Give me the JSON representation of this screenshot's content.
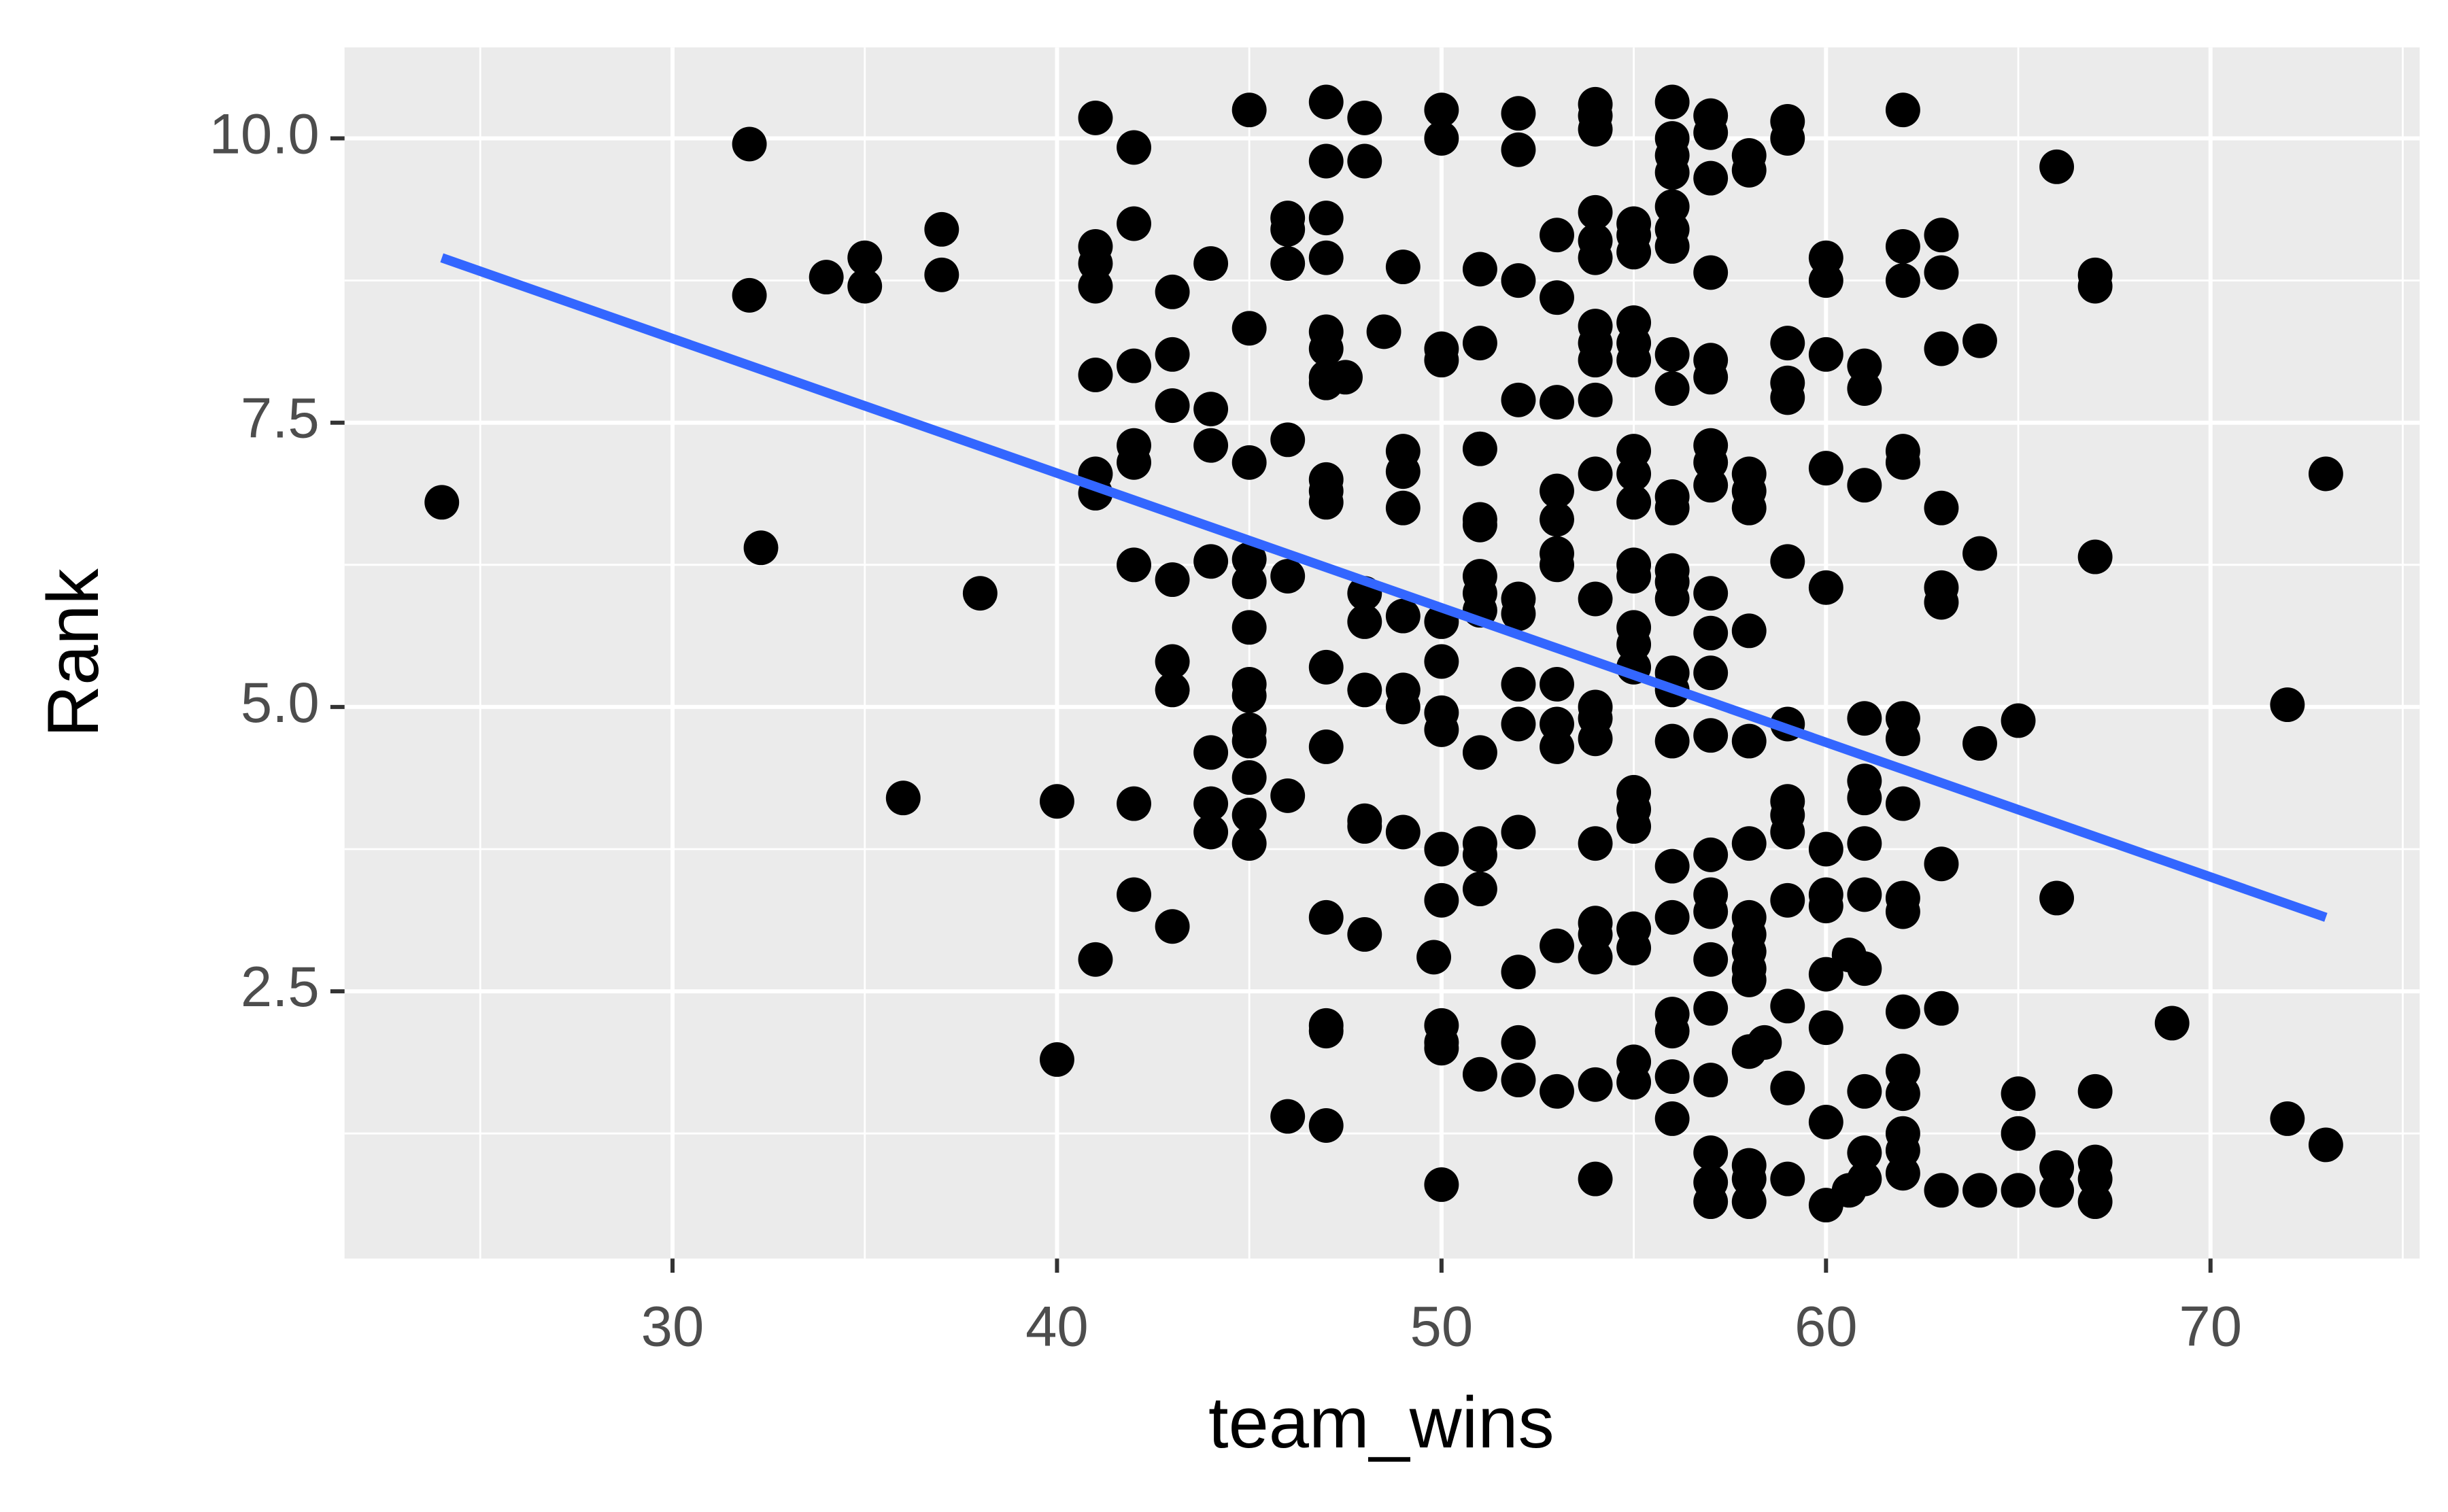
{
  "chart_data": {
    "type": "scatter",
    "xlabel": "team_wins",
    "ylabel": "Rank",
    "xlim": [
      21.47,
      75.44
    ],
    "ylim": [
      0.15,
      10.8
    ],
    "xticks": [
      30,
      40,
      50,
      60,
      70
    ],
    "yticks": [
      {
        "value": 2.5,
        "label": "2.5"
      },
      {
        "value": 5,
        "label": "5.0"
      },
      {
        "value": 7.5,
        "label": "7.5"
      },
      {
        "value": 10,
        "label": "10.0"
      }
    ],
    "x_minor_ticks": [
      25,
      35,
      45,
      55,
      65,
      75
    ],
    "y_minor_ticks": [
      1.25,
      3.75,
      6.25,
      8.75
    ],
    "grid": true,
    "background": "#ebebeb",
    "color": "#000000",
    "x": [
      24,
      32,
      32,
      32.3,
      34,
      35,
      35,
      36,
      37,
      37,
      38,
      40,
      40,
      41,
      41,
      41,
      41,
      41,
      41,
      41,
      41,
      42,
      42,
      42,
      42,
      42,
      42,
      42,
      42,
      43,
      43,
      43,
      43,
      43,
      43,
      43,
      44,
      44,
      44,
      44,
      44,
      44,
      44,
      45,
      45,
      45,
      45,
      45,
      45,
      45,
      45,
      45,
      45,
      45,
      45,
      45,
      46,
      46,
      46,
      46,
      46,
      46,
      46,
      47,
      47,
      47,
      47,
      47,
      47,
      47,
      47,
      47,
      47,
      47,
      47,
      47,
      47,
      47,
      47,
      47,
      47.5,
      48,
      48,
      48,
      48,
      48,
      48,
      48,
      48,
      48.5,
      49,
      49,
      49,
      49,
      49,
      49,
      49,
      49,
      49.8,
      50,
      50,
      50,
      50,
      50,
      50,
      50,
      50,
      50,
      50,
      50,
      50,
      50,
      50,
      51,
      51,
      51,
      51,
      51,
      51,
      51,
      51,
      51,
      51,
      51,
      51,
      51,
      52,
      52,
      52,
      52,
      52,
      52,
      52,
      52,
      52,
      52,
      52,
      52,
      53,
      53,
      53,
      53,
      53,
      53,
      53,
      53,
      53,
      53,
      53,
      53,
      54,
      54,
      54,
      54,
      54,
      54,
      54,
      54,
      54,
      54,
      54,
      54,
      54,
      54,
      54,
      54,
      54,
      54,
      54,
      54,
      54,
      55,
      55,
      55,
      55,
      55,
      55,
      55,
      55,
      55,
      55,
      55,
      55,
      55,
      55,
      55,
      55,
      55,
      55,
      55,
      55,
      55,
      56,
      56,
      56,
      56,
      56,
      56,
      56,
      56,
      56,
      56,
      56,
      56,
      56,
      56,
      56,
      56,
      56,
      56,
      56,
      56,
      56,
      56,
      56,
      57,
      57,
      57,
      57,
      57,
      57,
      57,
      57,
      57,
      57,
      57,
      57,
      57,
      57,
      57,
      57,
      57,
      57,
      57,
      57,
      57,
      57,
      58,
      58,
      58,
      58,
      58,
      58,
      58,
      58,
      58,
      58,
      58,
      58,
      58,
      58,
      58,
      58,
      58,
      58.4,
      59,
      59,
      59,
      59,
      59,
      59,
      59,
      59,
      59,
      59,
      59,
      59,
      59,
      59,
      60,
      60,
      60,
      60,
      60,
      60,
      60,
      60,
      60,
      60,
      60,
      60,
      60.6,
      60.6,
      61,
      61,
      61,
      61,
      61,
      61,
      61,
      61,
      61,
      61,
      61,
      61,
      62,
      62,
      62,
      62,
      62,
      62,
      62,
      62,
      62,
      62,
      62,
      62,
      62,
      62,
      62,
      62,
      63,
      63,
      63,
      63,
      63,
      63,
      63,
      63,
      63,
      64,
      64,
      64,
      64,
      65,
      65,
      65,
      65,
      66,
      66,
      66,
      66,
      67,
      67,
      67,
      67,
      67,
      67,
      67,
      69,
      72,
      72,
      73,
      73
    ],
    "values": [
      6.8,
      9.95,
      8.62,
      6.4,
      8.78,
      8.95,
      8.7,
      4.2,
      9.2,
      8.8,
      6.0,
      4.17,
      1.9,
      10.18,
      9.05,
      8.9,
      8.7,
      7.92,
      7.05,
      6.88,
      2.78,
      9.92,
      9.25,
      8.0,
      7.3,
      7.15,
      6.25,
      4.15,
      3.35,
      8.65,
      8.1,
      7.65,
      6.12,
      5.4,
      5.15,
      3.07,
      8.9,
      7.62,
      7.3,
      6.28,
      4.6,
      4.15,
      3.9,
      10.25,
      8.33,
      7.15,
      6.3,
      6.1,
      5.7,
      5.2,
      5.1,
      4.8,
      4.7,
      4.38,
      4.05,
      3.8,
      9.3,
      9.2,
      8.9,
      7.35,
      6.15,
      4.22,
      1.4,
      10.32,
      9.8,
      9.3,
      8.95,
      8.3,
      8.15,
      7.9,
      7.85,
      7.0,
      6.9,
      6.8,
      5.35,
      4.65,
      3.15,
      2.2,
      2.15,
      1.32,
      7.9,
      10.18,
      9.8,
      6.0,
      5.75,
      5.15,
      4.0,
      3.95,
      3.0,
      8.3,
      8.87,
      7.25,
      7.07,
      6.75,
      5.8,
      5.15,
      5.0,
      3.9,
      2.8,
      10.25,
      10.0,
      8.15,
      8.05,
      5.75,
      5.4,
      4.95,
      4.8,
      3.75,
      3.3,
      2.2,
      2.05,
      2.0,
      0.8,
      8.85,
      8.2,
      7.27,
      6.65,
      6.6,
      6.15,
      6.0,
      5.85,
      4.6,
      3.8,
      3.7,
      3.4,
      1.77,
      10.22,
      9.9,
      8.75,
      7.7,
      5.95,
      5.82,
      5.2,
      4.85,
      3.9,
      2.67,
      2.05,
      1.72,
      9.15,
      8.6,
      7.68,
      6.9,
      6.65,
      6.35,
      6.25,
      5.2,
      4.85,
      4.65,
      2.9,
      1.62,
      10.3,
      10.2,
      10.08,
      9.35,
      9.1,
      8.95,
      8.35,
      8.2,
      8.05,
      7.7,
      7.05,
      5.95,
      5.0,
      4.9,
      4.72,
      3.8,
      3.1,
      3.0,
      2.8,
      1.68,
      0.85,
      9.25,
      9.15,
      9.0,
      8.38,
      8.2,
      8.05,
      7.25,
      7.05,
      6.8,
      6.25,
      6.15,
      5.7,
      5.55,
      5.35,
      4.25,
      4.1,
      3.95,
      3.05,
      2.88,
      1.88,
      1.7,
      10.32,
      10.0,
      9.85,
      9.7,
      9.4,
      9.2,
      9.05,
      8.1,
      7.8,
      6.85,
      6.75,
      6.2,
      6.1,
      5.95,
      5.3,
      5.15,
      4.7,
      3.6,
      3.15,
      2.3,
      2.15,
      1.75,
      1.38,
      10.2,
      10.05,
      9.65,
      8.82,
      8.05,
      7.9,
      7.3,
      7.15,
      6.95,
      6.0,
      5.65,
      5.3,
      4.75,
      3.7,
      3.35,
      3.2,
      2.78,
      2.35,
      1.72,
      1.08,
      0.82,
      0.65,
      9.85,
      9.72,
      7.05,
      6.9,
      6.75,
      5.67,
      4.7,
      3.8,
      3.15,
      3.0,
      2.85,
      2.7,
      2.6,
      1.97,
      0.97,
      0.85,
      0.65,
      2.05,
      10.15,
      10.0,
      8.2,
      7.85,
      7.72,
      6.28,
      4.85,
      4.17,
      4.05,
      3.9,
      3.3,
      2.37,
      1.65,
      0.85,
      8.95,
      8.75,
      8.1,
      7.1,
      6.05,
      3.75,
      3.35,
      3.25,
      2.65,
      2.18,
      1.35,
      0.62,
      2.82,
      0.75,
      8.0,
      7.8,
      6.95,
      4.9,
      4.35,
      4.2,
      3.8,
      3.35,
      2.7,
      1.62,
      1.08,
      0.85,
      10.25,
      9.05,
      8.75,
      7.25,
      7.15,
      4.9,
      4.72,
      4.15,
      3.32,
      3.2,
      2.32,
      1.8,
      1.6,
      1.25,
      1.1,
      0.9,
      9.15,
      8.82,
      8.15,
      6.75,
      6.05,
      5.92,
      3.62,
      2.35,
      0.75,
      8.22,
      6.35,
      4.68,
      0.75,
      4.88,
      1.6,
      1.25,
      0.75,
      9.75,
      3.32,
      0.95,
      0.75,
      8.8,
      8.7,
      6.32,
      1.62,
      1.0,
      0.85,
      0.65,
      2.22,
      5.02,
      1.38,
      7.05,
      1.15
    ],
    "fit_line": {
      "x": [
        24,
        73
      ],
      "values": [
        8.95,
        3.15
      ],
      "color": "#3366ff"
    }
  }
}
